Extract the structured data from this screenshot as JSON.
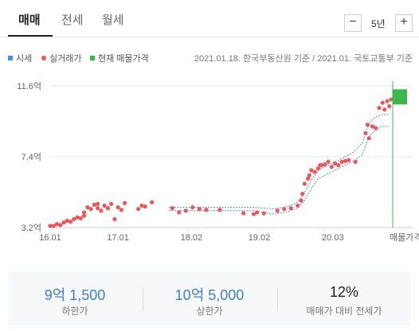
{
  "tabs": [
    {
      "label": "매매",
      "active": true
    },
    {
      "label": "전세",
      "active": false
    },
    {
      "label": "월세",
      "active": false
    }
  ],
  "period": {
    "minus": "−",
    "value": "5년",
    "plus": "+"
  },
  "legend": {
    "items": [
      {
        "label": "시세",
        "color": "#4a90e2",
        "shape": "square"
      },
      {
        "label": "실거래가",
        "color": "#f05454",
        "shape": "dot"
      },
      {
        "label": "현재 매물가격",
        "color": "#3bb84a",
        "shape": "square"
      }
    ],
    "source": "2021.01.18. 한국부동산원 기준 / 2021.01. 국토교통부 기준"
  },
  "colors": {
    "market": "#4a90e2",
    "transactions": "#f05454",
    "listing": "#3bb84a"
  },
  "chart_data": {
    "type": "scatter",
    "unit": "억",
    "x_unit": "year",
    "xlim": [
      2016.0,
      2021.05
    ],
    "ylim": [
      3.2,
      11.6
    ],
    "yticks": [
      {
        "label": "11.6억",
        "value": 11.6
      },
      {
        "label": "7.4억",
        "value": 7.4
      },
      {
        "label": "3.2억",
        "value": 3.2
      }
    ],
    "xticks": [
      {
        "label": "16.01",
        "value": 2016.0
      },
      {
        "label": "17.01",
        "value": 2017.0
      },
      {
        "label": "18.02",
        "value": 2018.083
      },
      {
        "label": "19.02",
        "value": 2019.083
      },
      {
        "label": "20.03",
        "value": 2020.167
      }
    ],
    "listing_label": "매물가격",
    "market_band": {
      "name": "시세",
      "x": [
        2017.75,
        2018.5,
        2019.0,
        2019.3,
        2019.5,
        2019.65,
        2019.75,
        2019.85,
        2019.95,
        2020.05,
        2020.15,
        2020.3,
        2020.45,
        2020.6,
        2020.7,
        2020.78,
        2020.88,
        2021.0
      ],
      "upper": [
        4.4,
        4.4,
        4.4,
        4.3,
        4.45,
        4.7,
        5.3,
        6.0,
        6.6,
        6.8,
        7.0,
        7.3,
        7.6,
        8.2,
        9.4,
        9.7,
        9.9,
        9.9
      ],
      "lower": [
        4.2,
        4.2,
        4.2,
        4.0,
        4.15,
        4.35,
        4.8,
        5.5,
        6.1,
        6.3,
        6.5,
        6.8,
        7.1,
        7.5,
        8.6,
        8.9,
        9.2,
        9.2
      ]
    },
    "transactions": {
      "name": "실거래가",
      "points": [
        [
          2016.0,
          3.3
        ],
        [
          2016.05,
          3.3
        ],
        [
          2016.1,
          3.4
        ],
        [
          2016.15,
          3.35
        ],
        [
          2016.2,
          3.5
        ],
        [
          2016.25,
          3.6
        ],
        [
          2016.3,
          3.55
        ],
        [
          2016.35,
          3.7
        ],
        [
          2016.4,
          3.8
        ],
        [
          2016.45,
          3.75
        ],
        [
          2016.5,
          3.9
        ],
        [
          2016.5,
          4.1
        ],
        [
          2016.55,
          4.4
        ],
        [
          2016.6,
          4.3
        ],
        [
          2016.65,
          4.55
        ],
        [
          2016.7,
          4.6
        ],
        [
          2016.7,
          4.35
        ],
        [
          2016.75,
          4.2
        ],
        [
          2016.8,
          4.5
        ],
        [
          2016.85,
          4.35
        ],
        [
          2016.9,
          4.6
        ],
        [
          2016.95,
          3.7
        ],
        [
          2017.0,
          4.4
        ],
        [
          2017.05,
          4.25
        ],
        [
          2017.1,
          4.65
        ],
        [
          2017.3,
          4.3
        ],
        [
          2017.35,
          4.5
        ],
        [
          2017.4,
          4.45
        ],
        [
          2017.5,
          4.7
        ],
        [
          2017.8,
          4.35
        ],
        [
          2017.9,
          4.1
        ],
        [
          2018.0,
          4.2
        ],
        [
          2018.1,
          4.4
        ],
        [
          2018.2,
          4.3
        ],
        [
          2018.3,
          4.25
        ],
        [
          2018.5,
          4.25
        ],
        [
          2018.85,
          4.05
        ],
        [
          2019.0,
          4.0
        ],
        [
          2019.05,
          4.1
        ],
        [
          2019.15,
          4.05
        ],
        [
          2019.35,
          4.2
        ],
        [
          2019.45,
          4.3
        ],
        [
          2019.55,
          4.35
        ],
        [
          2019.65,
          4.5
        ],
        [
          2019.7,
          4.8
        ],
        [
          2019.72,
          5.2
        ],
        [
          2019.75,
          5.8
        ],
        [
          2019.8,
          6.1
        ],
        [
          2019.82,
          6.3
        ],
        [
          2019.85,
          6.6
        ],
        [
          2019.9,
          6.5
        ],
        [
          2019.95,
          6.7
        ],
        [
          2019.98,
          6.9
        ],
        [
          2020.0,
          6.9
        ],
        [
          2020.05,
          6.95
        ],
        [
          2020.1,
          7.1
        ],
        [
          2020.15,
          6.8
        ],
        [
          2020.2,
          7.0
        ],
        [
          2020.25,
          6.9
        ],
        [
          2020.3,
          7.1
        ],
        [
          2020.35,
          7.15
        ],
        [
          2020.4,
          7.2
        ],
        [
          2020.5,
          7.1
        ],
        [
          2020.65,
          8.8
        ],
        [
          2020.68,
          9.3
        ],
        [
          2020.7,
          8.5
        ],
        [
          2020.75,
          9.2
        ],
        [
          2020.8,
          9.1
        ],
        [
          2020.85,
          10.3
        ],
        [
          2020.9,
          10.6
        ],
        [
          2020.93,
          10.2
        ],
        [
          2020.97,
          10.7
        ],
        [
          2021.0,
          10.4
        ],
        [
          2021.03,
          10.8
        ]
      ]
    },
    "listing_range": {
      "name": "현재 매물가격",
      "low": 10.5,
      "high": 11.4
    }
  },
  "summary": [
    {
      "value": "9억 1,500",
      "label": "하한가",
      "color": "blue"
    },
    {
      "value": "10억 5,000",
      "label": "상한가",
      "color": "blue"
    },
    {
      "value": "12%",
      "label": "매매가 대비 전세가",
      "color": "dark"
    }
  ]
}
